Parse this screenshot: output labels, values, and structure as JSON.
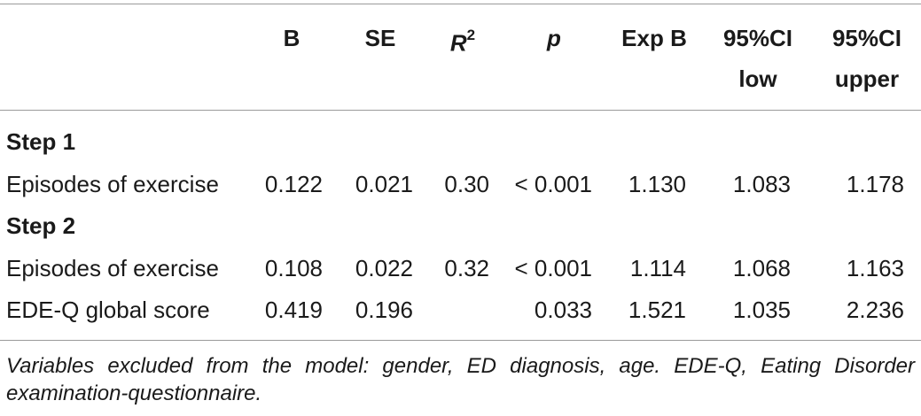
{
  "table": {
    "headers": {
      "b": "B",
      "se": "SE",
      "r2_base": "R",
      "r2_sup": "2",
      "p": "p",
      "exp_b": "Exp B",
      "ci_low_line1": "95%CI",
      "ci_low_line2": "low",
      "ci_upper_line1": "95%CI",
      "ci_upper_line2": "upper"
    },
    "step1": {
      "title": "Step 1",
      "rows": [
        {
          "label": "Episodes of exercise",
          "b": "0.122",
          "se": "0.021",
          "r2": "0.30",
          "p": "< 0.001",
          "exp_b": "1.130",
          "ci_low": "1.083",
          "ci_upper": "1.178"
        }
      ]
    },
    "step2": {
      "title": "Step 2",
      "rows": [
        {
          "label": "Episodes of exercise",
          "b": "0.108",
          "se": "0.022",
          "r2": "0.32",
          "p": "< 0.001",
          "exp_b": "1.114",
          "ci_low": "1.068",
          "ci_upper": "1.163"
        },
        {
          "label": "EDE-Q global score",
          "b": "0.419",
          "se": "0.196",
          "r2": "",
          "p": "0.033",
          "exp_b": "1.521",
          "ci_low": "1.035",
          "ci_upper": "2.236"
        }
      ]
    },
    "footnote": "Variables excluded from the model: gender, ED diagnosis, age. EDE-Q, Eating Disorder examination-questionnaire."
  }
}
